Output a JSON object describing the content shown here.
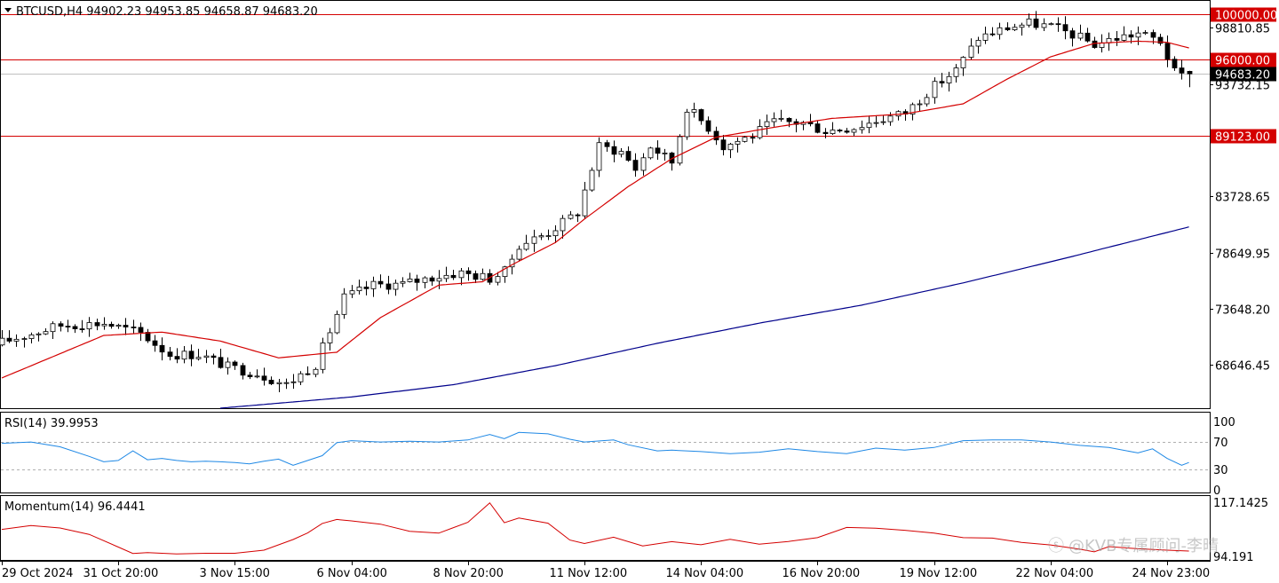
{
  "header": {
    "symbol_line": "BTCUSD,H4  94902.23 94953.85 94658.87 94683.20",
    "rsi_label": "RSI(14) 39.9953",
    "momentum_label": "Momentum(14) 96.4441",
    "watermark": "@KVB专属顾问-李晴"
  },
  "colors": {
    "background": "#ffffff",
    "candle_bull_body": "#ffffff",
    "candle_bear_body": "#000000",
    "ma20": "#d40000",
    "ma200": "#00008b",
    "hline": "#d40000",
    "rsi": "#1e88e5",
    "momentum": "#d40000"
  },
  "chart_data": [
    {
      "type": "candlestick",
      "symbol": "BTCUSD",
      "timeframe": "H4",
      "title": "BTCUSD,H4  94902.23 94953.85 94658.87 94683.20",
      "ohlc_last": {
        "open": 94902.23,
        "high": 94953.85,
        "low": 94658.87,
        "close": 94683.2
      },
      "x_tick_labels": [
        "29 Oct 2024",
        "31 Oct 20:00",
        "3 Nov 15:00",
        "6 Nov 04:00",
        "8 Nov 20:00",
        "11 Nov 12:00",
        "14 Nov 04:00",
        "16 Nov 20:00",
        "19 Nov 12:00",
        "22 Nov 04:00",
        "24 Nov 23:00"
      ],
      "y_tick_labels": [
        "98810.85",
        "93732.15",
        "83728.65",
        "78649.95",
        "73648.20",
        "68646.45"
      ],
      "ylim": [
        64800,
        101200
      ],
      "horizontal_lines": [
        {
          "value": 100000.0,
          "label": "100000.00"
        },
        {
          "value": 96000.0,
          "label": "96000.00"
        },
        {
          "value": 89123.0,
          "label": "89123.00"
        }
      ],
      "current_price": {
        "value": 94683.2,
        "label": "94683.20"
      },
      "moving_averages": [
        "MA fast (red)",
        "MA slow (navy)"
      ],
      "close_path_points": [
        [
          0,
          70700
        ],
        [
          8,
          72200
        ],
        [
          14,
          72400
        ],
        [
          19,
          71500
        ],
        [
          23,
          69600
        ],
        [
          27,
          69600
        ],
        [
          31,
          68500
        ],
        [
          35,
          67900
        ],
        [
          39,
          66900
        ],
        [
          43,
          68700
        ],
        [
          47,
          74700
        ],
        [
          51,
          75800
        ],
        [
          55,
          75900
        ],
        [
          59,
          76500
        ],
        [
          63,
          76900
        ],
        [
          67,
          76400
        ],
        [
          69,
          77000
        ],
        [
          71,
          79400
        ],
        [
          75,
          80500
        ],
        [
          79,
          82300
        ],
        [
          82,
          88200
        ],
        [
          85,
          87700
        ],
        [
          87,
          86200
        ],
        [
          89,
          88200
        ],
        [
          92,
          86800
        ],
        [
          94,
          91700
        ],
        [
          97,
          89900
        ],
        [
          99,
          88200
        ],
        [
          103,
          89200
        ],
        [
          106,
          90400
        ],
        [
          110,
          90300
        ],
        [
          113,
          89600
        ],
        [
          117,
          89900
        ],
        [
          120,
          90500
        ],
        [
          124,
          91200
        ],
        [
          128,
          93600
        ],
        [
          131,
          95000
        ],
        [
          134,
          97900
        ],
        [
          138,
          98800
        ],
        [
          141,
          99200
        ],
        [
          144,
          98900
        ],
        [
          147,
          98200
        ],
        [
          150,
          97300
        ],
        [
          153,
          97900
        ],
        [
          156,
          98300
        ],
        [
          159,
          97600
        ],
        [
          161,
          94800
        ],
        [
          162,
          94500
        ],
        [
          163,
          94683.2
        ]
      ],
      "ma20_path_points": [
        [
          0,
          67500
        ],
        [
          14,
          71300
        ],
        [
          22,
          71600
        ],
        [
          30,
          70800
        ],
        [
          38,
          69300
        ],
        [
          46,
          69800
        ],
        [
          52,
          72900
        ],
        [
          60,
          75800
        ],
        [
          66,
          76100
        ],
        [
          70,
          77600
        ],
        [
          76,
          79600
        ],
        [
          80,
          81700
        ],
        [
          86,
          84600
        ],
        [
          92,
          87100
        ],
        [
          98,
          89000
        ],
        [
          106,
          89900
        ],
        [
          114,
          90700
        ],
        [
          124,
          91100
        ],
        [
          132,
          92000
        ],
        [
          138,
          94200
        ],
        [
          144,
          96200
        ],
        [
          150,
          97400
        ],
        [
          156,
          97600
        ],
        [
          160,
          97500
        ],
        [
          163,
          97000
        ]
      ],
      "ma200_path_points": [
        [
          30,
          64800
        ],
        [
          48,
          65800
        ],
        [
          62,
          66900
        ],
        [
          76,
          68600
        ],
        [
          90,
          70600
        ],
        [
          104,
          72400
        ],
        [
          118,
          74000
        ],
        [
          132,
          76000
        ],
        [
          146,
          78200
        ],
        [
          163,
          81000
        ]
      ]
    },
    {
      "type": "line",
      "name": "RSI(14)",
      "title": "RSI(14) 39.9953",
      "last_value": 39.9953,
      "ylim": [
        0,
        100
      ],
      "y_tick_labels": [
        "100",
        "70",
        "30",
        "0"
      ],
      "levels": [
        30,
        70
      ],
      "x": [
        0,
        4,
        8,
        12,
        14,
        16,
        18,
        20,
        22,
        24,
        26,
        28,
        30,
        32,
        34,
        36,
        38,
        40,
        44,
        46,
        48,
        52,
        56,
        60,
        64,
        67,
        69,
        71,
        75,
        78,
        80,
        84,
        86,
        90,
        92,
        96,
        100,
        104,
        108,
        112,
        116,
        120,
        124,
        128,
        132,
        136,
        140,
        144,
        148,
        152,
        156,
        158,
        160,
        162,
        163
      ],
      "values": [
        68,
        70,
        63,
        49,
        41,
        43,
        57,
        44,
        46,
        43,
        41,
        42,
        41,
        40,
        38,
        42,
        45,
        36,
        50,
        69,
        72,
        70,
        71,
        70,
        73,
        81,
        75,
        84,
        82,
        74,
        70,
        73,
        66,
        57,
        58,
        56,
        53,
        55,
        60,
        56,
        53,
        61,
        58,
        62,
        72,
        73,
        73,
        70,
        65,
        62,
        54,
        60,
        46,
        36,
        40
      ]
    },
    {
      "type": "line",
      "name": "Momentum(14)",
      "title": "Momentum(14) 96.4441",
      "last_value": 96.4441,
      "y_tick_labels": [
        "117.1425",
        "94.191"
      ],
      "ylim": [
        93.8,
        118.2
      ],
      "x": [
        0,
        4,
        8,
        12,
        16,
        18,
        20,
        24,
        28,
        32,
        36,
        40,
        42,
        44,
        46,
        48,
        52,
        56,
        60,
        64,
        67,
        69,
        71,
        75,
        78,
        80,
        84,
        88,
        92,
        96,
        100,
        104,
        108,
        112,
        116,
        120,
        124,
        128,
        132,
        136,
        140,
        144,
        148,
        150,
        152,
        156,
        160,
        163
      ],
      "values": [
        105.6,
        107.2,
        106.2,
        103.5,
        98.1,
        95.4,
        95.8,
        95.2,
        95.5,
        95.5,
        96.8,
        101.3,
        104.1,
        108.1,
        109.8,
        109.2,
        107.8,
        104.8,
        104.0,
        108.6,
        116.8,
        108.4,
        110.4,
        108.2,
        101.1,
        99.6,
        102.3,
        98.6,
        100.4,
        99.1,
        101.4,
        99.3,
        100.5,
        102.1,
        106.4,
        106.1,
        105.2,
        104.0,
        102.1,
        101.9,
        100.1,
        99.0,
        97.2,
        96.1,
        98.3,
        97.4,
        96.8,
        96.4441
      ]
    }
  ],
  "x_axis": {
    "labels": [
      "29 Oct 2024",
      "31 Oct 20:00",
      "3 Nov 15:00",
      "6 Nov 04:00",
      "8 Nov 20:00",
      "11 Nov 12:00",
      "14 Nov 04:00",
      "16 Nov 20:00",
      "19 Nov 12:00",
      "22 Nov 04:00",
      "24 Nov 23:00"
    ],
    "label_bars": [
      0,
      16,
      32,
      48,
      64,
      80,
      96,
      112,
      128,
      144,
      160
    ]
  }
}
